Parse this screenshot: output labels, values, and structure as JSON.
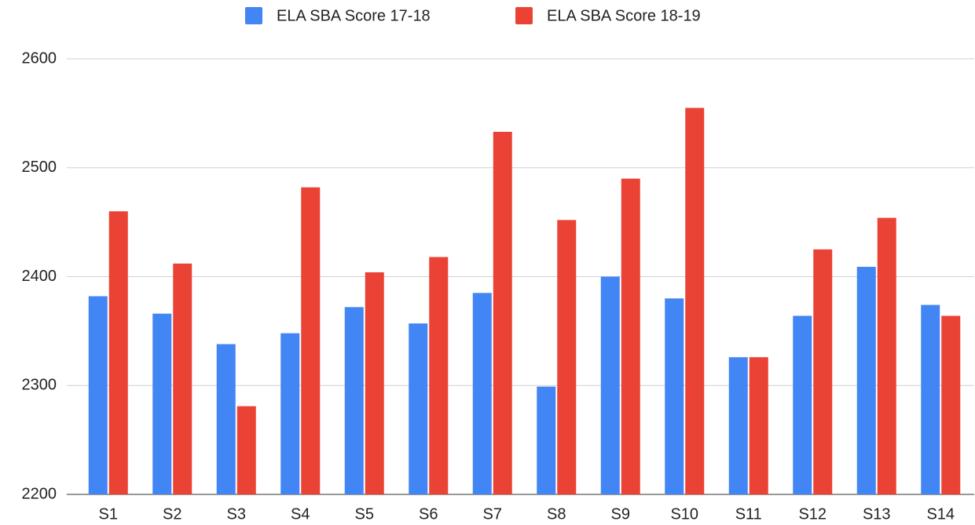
{
  "chart_data": {
    "type": "bar",
    "categories": [
      "S1",
      "S2",
      "S3",
      "S4",
      "S5",
      "S6",
      "S7",
      "S8",
      "S9",
      "S10",
      "S11",
      "S12",
      "S13",
      "S14"
    ],
    "series": [
      {
        "name": "ELA SBA Score 17-18",
        "color": "#4285f4",
        "values": [
          2382,
          2366,
          2338,
          2348,
          2372,
          2357,
          2385,
          2299,
          2400,
          2380,
          2326,
          2364,
          2409,
          2374
        ]
      },
      {
        "name": "ELA SBA Score 18-19",
        "color": "#ea4335",
        "values": [
          2460,
          2412,
          2281,
          2482,
          2404,
          2418,
          2533,
          2452,
          2490,
          2555,
          2326,
          2425,
          2454,
          2364
        ]
      }
    ],
    "ylim": [
      2200,
      2600
    ],
    "yticks": [
      2200,
      2300,
      2400,
      2500,
      2600
    ],
    "grid": true,
    "legend": "top"
  }
}
